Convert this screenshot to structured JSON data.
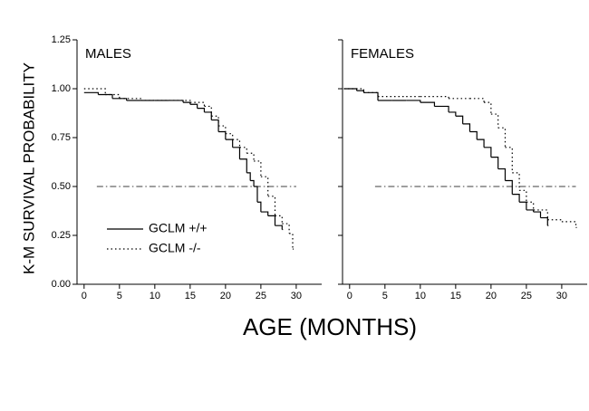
{
  "ylabel": "K-M SURVIVAL PROBABILITY",
  "xlabel": "AGE (MONTHS)",
  "chart_data": [
    {
      "type": "line",
      "title": "MALES",
      "legend": "lower left",
      "xlim": [
        -1,
        33.6
      ],
      "ylim": [
        0,
        1.25
      ],
      "xticks": [
        0,
        5,
        10,
        15,
        20,
        25,
        30
      ],
      "yticks": [
        {
          "value": 0,
          "label": "0.00"
        },
        {
          "value": 0.25,
          "label": "0.25"
        },
        {
          "value": 0.5,
          "label": "0.50"
        },
        {
          "value": 0.75,
          "label": "0.75"
        },
        {
          "value": 1,
          "label": "1.00"
        },
        {
          "value": 1.25,
          "label": "1.25"
        }
      ],
      "refline": {
        "y": 0.5,
        "x": [
          1.8,
          30
        ]
      },
      "series": [
        {
          "name": "GCLM +/+",
          "color": "#000",
          "style": "solid",
          "x": [
            0,
            2,
            4,
            6,
            8,
            10,
            12,
            14,
            15,
            16,
            17,
            18,
            19,
            20,
            21,
            22,
            23,
            23.5,
            24,
            24.5,
            25,
            26,
            27,
            28
          ],
          "values": [
            0.98,
            0.97,
            0.95,
            0.94,
            0.94,
            0.94,
            0.94,
            0.93,
            0.92,
            0.9,
            0.88,
            0.84,
            0.78,
            0.74,
            0.7,
            0.64,
            0.57,
            0.53,
            0.5,
            0.42,
            0.37,
            0.35,
            0.3,
            0.28
          ]
        },
        {
          "name": "GCLM -/-",
          "color": "#000",
          "style": "dotted",
          "x": [
            0,
            3,
            5,
            8,
            12,
            15,
            17,
            18,
            19,
            20,
            21,
            22,
            23,
            24,
            25,
            26,
            27,
            28,
            29,
            29.5
          ],
          "values": [
            1.0,
            0.97,
            0.95,
            0.94,
            0.94,
            0.93,
            0.91,
            0.86,
            0.81,
            0.77,
            0.74,
            0.7,
            0.67,
            0.63,
            0.55,
            0.45,
            0.35,
            0.31,
            0.26,
            0.18
          ]
        }
      ]
    },
    {
      "type": "line",
      "title": "FEMALES",
      "xlim": [
        -1,
        33.6
      ],
      "ylim": [
        0,
        1.25
      ],
      "xticks": [
        0,
        5,
        10,
        15,
        20,
        25,
        30
      ],
      "yticks": [
        0,
        0.25,
        0.5,
        0.75,
        1,
        1.25
      ],
      "refline": {
        "y": 0.5,
        "x": [
          3.6,
          32
        ]
      },
      "series": [
        {
          "color": "#000",
          "style": "solid",
          "x": [
            -0.8,
            1,
            2,
            4,
            6,
            8,
            10,
            12,
            14,
            15,
            16,
            17,
            18,
            19,
            20,
            21,
            22,
            23,
            24,
            25,
            26,
            27,
            28
          ],
          "values": [
            1.0,
            0.99,
            0.98,
            0.94,
            0.94,
            0.94,
            0.93,
            0.91,
            0.88,
            0.86,
            0.82,
            0.78,
            0.74,
            0.7,
            0.65,
            0.59,
            0.53,
            0.46,
            0.42,
            0.38,
            0.37,
            0.34,
            0.3
          ]
        },
        {
          "color": "#000",
          "style": "dotted",
          "x": [
            -0.8,
            2,
            4,
            8,
            10,
            14,
            17,
            19,
            20,
            21,
            22,
            23,
            24,
            25,
            26,
            28,
            30,
            32
          ],
          "values": [
            1.0,
            0.98,
            0.96,
            0.96,
            0.96,
            0.95,
            0.95,
            0.93,
            0.87,
            0.8,
            0.7,
            0.57,
            0.48,
            0.42,
            0.38,
            0.33,
            0.32,
            0.29
          ]
        }
      ]
    }
  ]
}
